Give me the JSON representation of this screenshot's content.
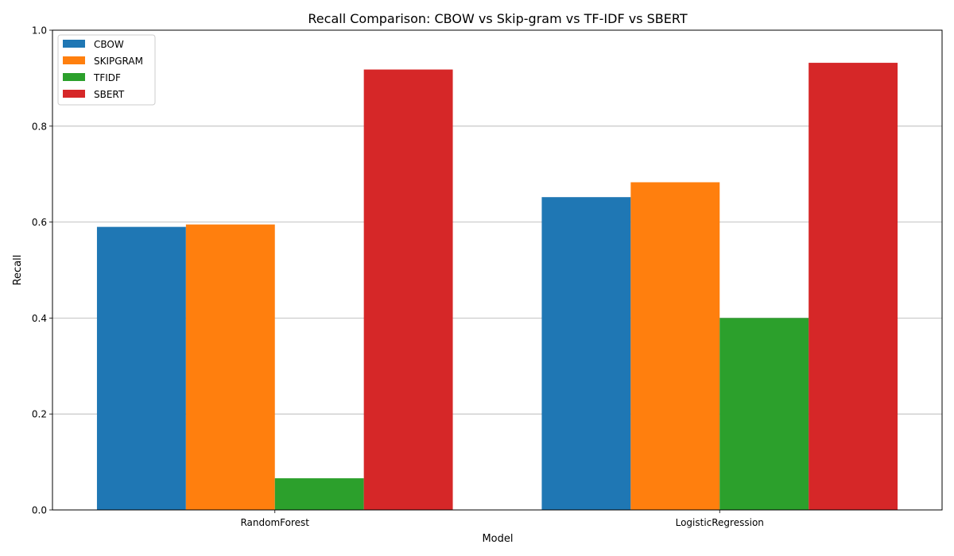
{
  "chart_data": {
    "type": "bar",
    "title": "Recall Comparison: CBOW vs Skip-gram vs TF-IDF vs SBERT",
    "xlabel": "Model",
    "ylabel": "Recall",
    "categories": [
      "RandomForest",
      "LogisticRegression"
    ],
    "ylim": [
      0,
      1
    ],
    "yticks": [
      "0.0",
      "0.2",
      "0.4",
      "0.6",
      "0.8",
      "1.0"
    ],
    "grid": "y-axis horizontal lines",
    "legend_position": "top-left",
    "series": [
      {
        "name": "CBOW",
        "color": "#1f77b4",
        "values": [
          0.59,
          0.652
        ]
      },
      {
        "name": "SKIPGRAM",
        "color": "#ff7f0e",
        "values": [
          0.595,
          0.683
        ]
      },
      {
        "name": "TFIDF",
        "color": "#2ca02c",
        "values": [
          0.066,
          0.4
        ]
      },
      {
        "name": "SBERT",
        "color": "#d62728",
        "values": [
          0.918,
          0.932
        ]
      }
    ]
  }
}
